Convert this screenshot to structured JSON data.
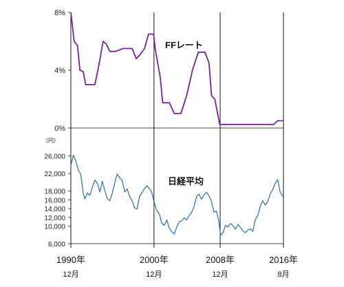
{
  "chart_data": [
    {
      "type": "line",
      "ylim": [
        0,
        8
      ],
      "y_ticks": [
        "8%",
        "4%",
        "0%"
      ],
      "y_tick_values": [
        8,
        4,
        0
      ],
      "annotation": "FFレート",
      "color": "#7a1f9e",
      "series": [
        {
          "name": "FFレート",
          "x": [
            1990.9,
            1991.3,
            1991.7,
            1992.0,
            1992.4,
            1992.7,
            1993.8,
            1994.3,
            1994.8,
            1995.2,
            1995.6,
            1996.3,
            1997.2,
            1998.3,
            1998.8,
            1999.3,
            1999.8,
            2000.3,
            2000.9,
            2001.1,
            2001.4,
            2001.7,
            2002.0,
            2002.8,
            2003.4,
            2004.2,
            2004.9,
            2005.6,
            2006.3,
            2007.1,
            2007.6,
            2007.9,
            2008.3,
            2008.9,
            2009.0,
            2015.4,
            2015.9,
            2016.6
          ],
          "y": [
            8.0,
            6.0,
            5.7,
            4.0,
            3.9,
            3.0,
            3.0,
            4.4,
            6.0,
            5.8,
            5.3,
            5.3,
            5.5,
            5.5,
            4.8,
            5.1,
            5.5,
            6.5,
            6.5,
            5.5,
            4.5,
            3.5,
            1.75,
            1.75,
            1.0,
            1.0,
            2.25,
            4.0,
            5.25,
            5.25,
            4.5,
            2.25,
            2.0,
            0.25,
            0.25,
            0.25,
            0.5,
            0.5
          ]
        }
      ]
    },
    {
      "type": "line",
      "ylim": [
        6000,
        28000
      ],
      "y_ticks": [
        "26,000",
        "22,000",
        "18,000",
        "14,000",
        "10,000",
        "6,000"
      ],
      "y_tick_values": [
        26000,
        22000,
        18000,
        14000,
        10000,
        6000
      ],
      "extra_ticks": [
        {
          "label": "16,000",
          "value": 16000
        },
        {
          "label": "12,000",
          "value": 12000
        }
      ],
      "unit_label": "（円）",
      "annotation": "日経平均",
      "color": "#3a74b8",
      "series": [
        {
          "name": "日経平均",
          "x": [
            1990.9,
            1991.2,
            1991.5,
            1991.8,
            1992.1,
            1992.4,
            1992.6,
            1992.9,
            1993.2,
            1993.5,
            1993.8,
            1994.1,
            1994.4,
            1994.7,
            1995.0,
            1995.3,
            1995.6,
            1995.9,
            1996.2,
            1996.5,
            1996.8,
            1997.1,
            1997.4,
            1997.7,
            1998.0,
            1998.3,
            1998.6,
            1998.9,
            1999.2,
            1999.5,
            1999.8,
            2000.1,
            2000.4,
            2000.7,
            2000.95,
            2001.3,
            2001.6,
            2001.9,
            2002.2,
            2002.5,
            2002.8,
            2003.1,
            2003.4,
            2003.7,
            2004.0,
            2004.3,
            2004.6,
            2004.9,
            2005.2,
            2005.5,
            2005.8,
            2006.1,
            2006.4,
            2006.7,
            2007.0,
            2007.3,
            2007.6,
            2007.9,
            2008.2,
            2008.5,
            2008.8,
            2009.0,
            2009.3,
            2009.6,
            2009.9,
            2010.2,
            2010.5,
            2010.8,
            2011.1,
            2011.4,
            2011.7,
            2012.0,
            2012.3,
            2012.6,
            2012.9,
            2013.2,
            2013.5,
            2013.8,
            2014.1,
            2014.4,
            2014.7,
            2015.0,
            2015.3,
            2015.6,
            2015.9,
            2016.2,
            2016.6
          ],
          "y": [
            23800,
            26200,
            24900,
            22800,
            21800,
            17500,
            16200,
            17600,
            17000,
            18900,
            20500,
            19800,
            17800,
            20200,
            18200,
            16300,
            15800,
            17500,
            19800,
            21900,
            21000,
            20500,
            17800,
            18500,
            16800,
            15800,
            14200,
            13900,
            16800,
            17600,
            18600,
            19200,
            18600,
            17600,
            15600,
            13500,
            12800,
            10600,
            10200,
            11400,
            9500,
            8700,
            8200,
            9800,
            11000,
            11200,
            11900,
            11400,
            12400,
            13100,
            14500,
            16800,
            17300,
            16100,
            17200,
            17700,
            16900,
            15600,
            13200,
            13400,
            11000,
            7900,
            8500,
            10200,
            9800,
            10600,
            10100,
            9300,
            10400,
            9700,
            8900,
            8500,
            9100,
            9400,
            8800,
            11500,
            12400,
            14600,
            15800,
            14800,
            15600,
            17400,
            18300,
            19800,
            20600,
            17800,
            16500
          ]
        }
      ]
    }
  ],
  "x_axis": {
    "labels": [
      {
        "year": "1990年",
        "month": "12月"
      },
      {
        "year": "2000年",
        "month": "12月"
      },
      {
        "year": "2008年",
        "month": "12月"
      },
      {
        "year": "2016年",
        "month": "8月"
      }
    ],
    "values": [
      1990.9,
      2000.95,
      2008.95,
      2016.6
    ]
  }
}
